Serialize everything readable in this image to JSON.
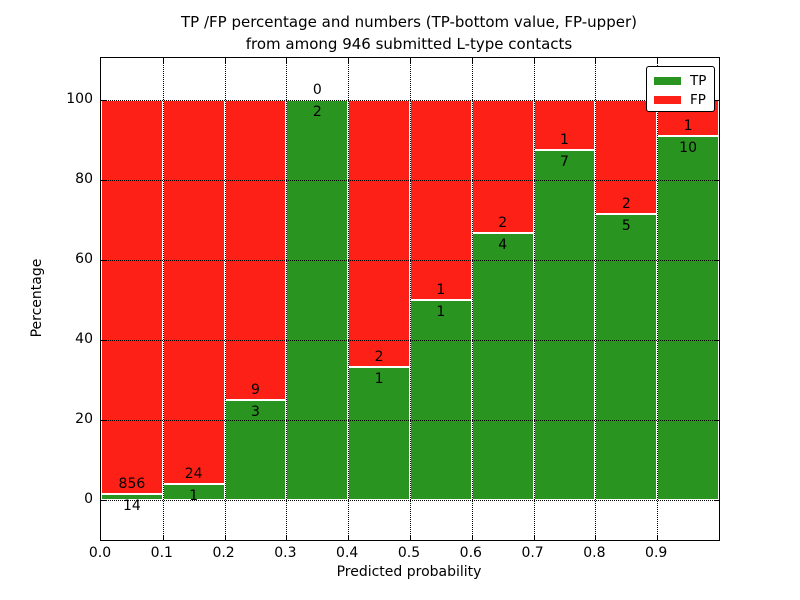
{
  "chart_data": {
    "type": "bar",
    "stacked": true,
    "title_lines": [
      "TP /FP percentage and numbers (TP-bottom value, FP-upper)",
      "from among 946 submitted L-type contacts"
    ],
    "title": "TP /FP percentage and numbers (TP-bottom value, FP-upper)\nfrom among 946 submitted L-type contacts",
    "xlabel": "Predicted probability",
    "ylabel": "Percentage",
    "total_submitted_contacts": 946,
    "x_tick_labels": [
      "0.0",
      "0.1",
      "0.2",
      "0.3",
      "0.4",
      "0.5",
      "0.6",
      "0.7",
      "0.8",
      "0.9"
    ],
    "y_tick_values": [
      0,
      20,
      40,
      60,
      80,
      100
    ],
    "y_tick_labels": [
      "0",
      "20",
      "40",
      "60",
      "80",
      "100"
    ],
    "xlim": [
      0.0,
      1.0
    ],
    "ylim": [
      -10,
      110.5
    ],
    "grid": "dotted-black-both-axes",
    "bar_bin_width": 0.1,
    "annotation_scheme": "FP count printed above TP/FP boundary, TP count printed below boundary",
    "bins": [
      {
        "x_start": 0.0,
        "x_end": 0.1,
        "tp": 14,
        "fp": 856,
        "tp_pct": 1.6
      },
      {
        "x_start": 0.1,
        "x_end": 0.2,
        "tp": 1,
        "fp": 24,
        "tp_pct": 4.0
      },
      {
        "x_start": 0.2,
        "x_end": 0.3,
        "tp": 3,
        "fp": 9,
        "tp_pct": 25.0
      },
      {
        "x_start": 0.3,
        "x_end": 0.4,
        "tp": 2,
        "fp": 0,
        "tp_pct": 100.0
      },
      {
        "x_start": 0.4,
        "x_end": 0.5,
        "tp": 1,
        "fp": 2,
        "tp_pct": 33.3
      },
      {
        "x_start": 0.5,
        "x_end": 0.6,
        "tp": 1,
        "fp": 1,
        "tp_pct": 50.0
      },
      {
        "x_start": 0.6,
        "x_end": 0.7,
        "tp": 4,
        "fp": 2,
        "tp_pct": 66.7
      },
      {
        "x_start": 0.7,
        "x_end": 0.8,
        "tp": 7,
        "fp": 1,
        "tp_pct": 87.5
      },
      {
        "x_start": 0.8,
        "x_end": 0.9,
        "tp": 5,
        "fp": 2,
        "tp_pct": 71.4
      },
      {
        "x_start": 0.9,
        "x_end": 1.0,
        "tp": 10,
        "fp": 1,
        "tp_pct": 90.9
      }
    ],
    "legend": {
      "position": "upper right",
      "entries": [
        {
          "label": "TP",
          "color": "#2a9420"
        },
        {
          "label": "FP",
          "color": "#fd2017"
        }
      ]
    },
    "colors": {
      "tp_bar": "#2a9420",
      "fp_bar": "#fd2017",
      "bar_edge": "#ffffff",
      "grid_and_text": "#000000",
      "background": "#ffffff"
    }
  }
}
